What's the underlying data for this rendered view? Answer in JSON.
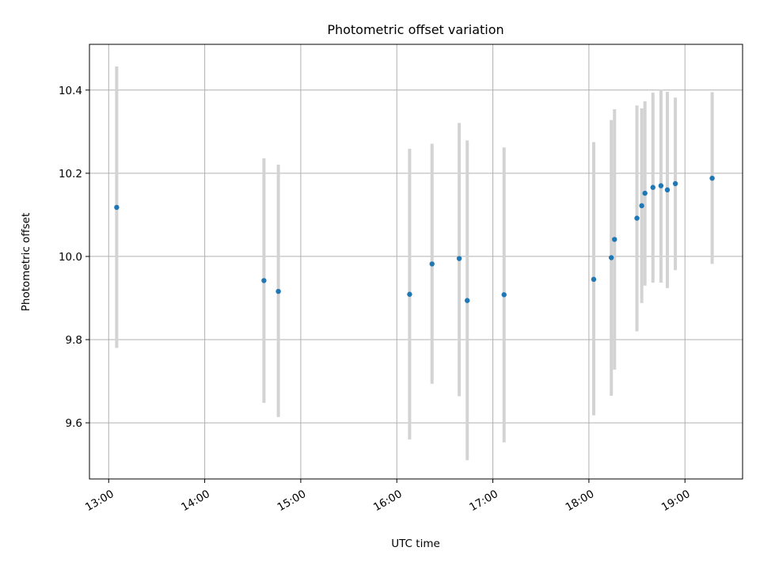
{
  "chart_data": {
    "type": "scatter",
    "title": "Photometric offset variation",
    "xlabel": "UTC time",
    "ylabel": "Photometric offset",
    "xlim": [
      "12:48",
      "19:36"
    ],
    "ylim": [
      9.465,
      10.51
    ],
    "x_ticks": [
      "13:00",
      "14:00",
      "15:00",
      "16:00",
      "17:00",
      "18:00",
      "19:00"
    ],
    "y_ticks": [
      "9.6",
      "9.8",
      "10.0",
      "10.2",
      "10.4"
    ],
    "grid": true,
    "colors": {
      "point": "#1f77b4",
      "errorbar": "#d3d3d3",
      "grid": "#b0b0b0"
    },
    "series": [
      {
        "points": [
          {
            "t": "13:05",
            "y": 10.118,
            "lo": 9.78,
            "hi": 10.457
          },
          {
            "t": "14:37",
            "y": 9.942,
            "lo": 9.648,
            "hi": 10.236
          },
          {
            "t": "14:46",
            "y": 9.916,
            "lo": 9.614,
            "hi": 10.221
          },
          {
            "t": "16:08",
            "y": 9.909,
            "lo": 9.56,
            "hi": 10.259
          },
          {
            "t": "16:22",
            "y": 9.982,
            "lo": 9.694,
            "hi": 10.271
          },
          {
            "t": "16:39",
            "y": 9.995,
            "lo": 9.664,
            "hi": 10.321
          },
          {
            "t": "16:44",
            "y": 9.894,
            "lo": 9.51,
            "hi": 10.279
          },
          {
            "t": "17:07",
            "y": 9.908,
            "lo": 9.553,
            "hi": 10.262
          },
          {
            "t": "18:03",
            "y": 9.945,
            "lo": 9.618,
            "hi": 10.275
          },
          {
            "t": "18:14",
            "y": 9.997,
            "lo": 9.665,
            "hi": 10.328
          },
          {
            "t": "18:16",
            "y": 10.041,
            "lo": 9.728,
            "hi": 10.354
          },
          {
            "t": "18:30",
            "y": 10.092,
            "lo": 9.82,
            "hi": 10.363
          },
          {
            "t": "18:33",
            "y": 10.122,
            "lo": 9.888,
            "hi": 10.356
          },
          {
            "t": "18:35",
            "y": 10.152,
            "lo": 9.93,
            "hi": 10.373
          },
          {
            "t": "18:40",
            "y": 10.166,
            "lo": 9.937,
            "hi": 10.394
          },
          {
            "t": "18:45",
            "y": 10.17,
            "lo": 9.937,
            "hi": 10.401
          },
          {
            "t": "18:49",
            "y": 10.16,
            "lo": 9.924,
            "hi": 10.396
          },
          {
            "t": "18:54",
            "y": 10.175,
            "lo": 9.967,
            "hi": 10.382
          },
          {
            "t": "19:17",
            "y": 10.188,
            "lo": 9.982,
            "hi": 10.395
          }
        ]
      }
    ]
  }
}
